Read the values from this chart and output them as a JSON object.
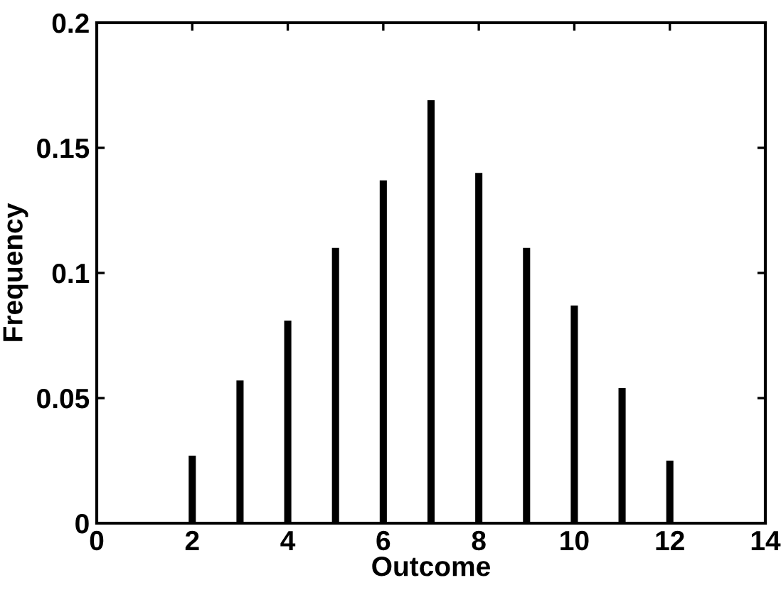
{
  "chart_data": {
    "type": "bar",
    "xlabel": "Outcome",
    "ylabel": "Frequency",
    "x": [
      2,
      3,
      4,
      5,
      6,
      7,
      8,
      9,
      10,
      11,
      12
    ],
    "values": [
      0.027,
      0.057,
      0.081,
      0.11,
      0.137,
      0.169,
      0.14,
      0.11,
      0.087,
      0.054,
      0.025
    ],
    "color": "#000000",
    "xlim": [
      0,
      14
    ],
    "xticks": [
      0,
      2,
      4,
      6,
      8,
      10,
      12,
      14
    ],
    "ylim": [
      0,
      0.2
    ],
    "yticks": [
      0,
      0.05,
      0.1,
      0.15,
      0.2
    ],
    "grid": false
  }
}
